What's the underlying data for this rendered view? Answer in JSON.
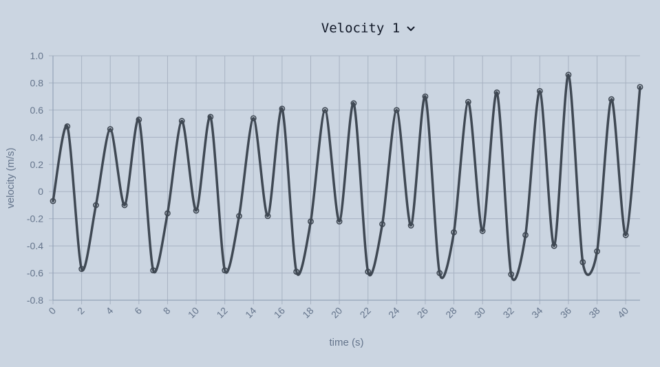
{
  "selector": {
    "label": "Velocity 1",
    "icon": "chevron-down-icon"
  },
  "colors": {
    "background": "#cbd5e1",
    "grid": "#a7b2c2",
    "axis": "#94a3b8",
    "line": "#3f4853",
    "tick_text": "#64748b"
  },
  "chart_data": {
    "type": "line",
    "title": "",
    "xlabel": "time (s)",
    "ylabel": "velocity (m/s)",
    "xlim": [
      0,
      41
    ],
    "ylim": [
      -0.8,
      1.0
    ],
    "x_ticks": [
      0,
      2,
      4,
      6,
      8,
      10,
      12,
      14,
      16,
      18,
      20,
      22,
      24,
      26,
      28,
      30,
      32,
      34,
      36,
      38,
      40
    ],
    "x_tick_labels": [
      "0",
      "2",
      "4",
      "6",
      "8",
      "10",
      "12",
      "14",
      "16",
      "18",
      "20",
      "22",
      "24",
      "26",
      "28",
      "30",
      "32",
      "34",
      "36",
      "38",
      "40"
    ],
    "y_ticks": [
      -0.8,
      -0.6,
      -0.4,
      -0.2,
      0,
      0.2,
      0.4,
      0.6,
      0.8,
      1.0
    ],
    "y_tick_labels": [
      "-0.8",
      "-0.6",
      "-0.4",
      "-0.2",
      "0",
      "0.2",
      "0.4",
      "0.6",
      "0.8",
      "1.0"
    ],
    "grid": true,
    "legend": "none",
    "series": [
      {
        "x": [
          0,
          1,
          2,
          3,
          4,
          5,
          6,
          7,
          8,
          9,
          10,
          11,
          12,
          13,
          14,
          15,
          16,
          17,
          18,
          19,
          20,
          21,
          22,
          23,
          24,
          25,
          26,
          27,
          28,
          29,
          30,
          31,
          32,
          33,
          34,
          35,
          36,
          37,
          38,
          39,
          40,
          41
        ],
        "y": [
          -0.07,
          0.48,
          -0.57,
          -0.1,
          0.46,
          -0.1,
          0.53,
          -0.58,
          -0.16,
          0.52,
          -0.14,
          0.55,
          -0.58,
          -0.18,
          0.54,
          -0.18,
          0.61,
          -0.59,
          -0.22,
          0.6,
          -0.22,
          0.65,
          -0.59,
          -0.24,
          0.6,
          -0.25,
          0.7,
          -0.6,
          -0.3,
          0.66,
          -0.29,
          0.73,
          -0.61,
          -0.32,
          0.74,
          -0.4,
          0.86,
          -0.52,
          -0.44,
          0.68,
          -0.32,
          0.77
        ]
      }
    ]
  }
}
